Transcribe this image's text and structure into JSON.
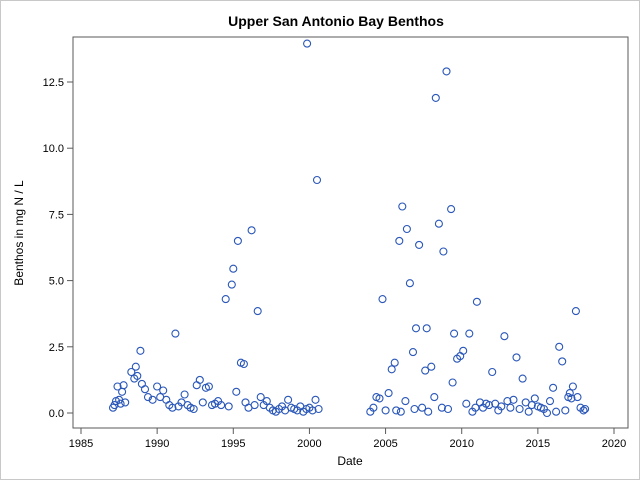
{
  "chart_data": {
    "type": "scatter",
    "title": "Upper San Antonio Bay Benthos",
    "xlabel": "Date",
    "ylabel": "Benthos in mg N / L",
    "xlim": [
      1985,
      2020
    ],
    "ylim": [
      0,
      14
    ],
    "xticks": [
      1985,
      1990,
      1995,
      2000,
      2005,
      2010,
      2015,
      2020
    ],
    "xtick_labels": [
      "1985",
      "1990",
      "1995",
      "2000",
      "2005",
      "2010",
      "2015",
      "2020"
    ],
    "yticks": [
      0,
      2.5,
      5,
      7.5,
      10,
      12.5
    ],
    "ytick_labels": [
      "0.0",
      "2.5",
      "5.0",
      "7.5",
      "10.0",
      "12.5"
    ],
    "grid": false,
    "marker": "open-circle",
    "color": "#2a57b8",
    "points": [
      [
        1987.1,
        0.2
      ],
      [
        1987.2,
        0.3
      ],
      [
        1987.3,
        0.45
      ],
      [
        1987.4,
        1.0
      ],
      [
        1987.5,
        0.5
      ],
      [
        1987.6,
        0.35
      ],
      [
        1987.7,
        0.8
      ],
      [
        1987.8,
        1.05
      ],
      [
        1987.9,
        0.4
      ],
      [
        1988.3,
        1.55
      ],
      [
        1988.5,
        1.3
      ],
      [
        1988.6,
        1.75
      ],
      [
        1988.7,
        1.4
      ],
      [
        1988.9,
        2.35
      ],
      [
        1989.0,
        1.1
      ],
      [
        1989.2,
        0.9
      ],
      [
        1989.4,
        0.6
      ],
      [
        1989.7,
        0.5
      ],
      [
        1990.0,
        1.0
      ],
      [
        1990.2,
        0.6
      ],
      [
        1990.4,
        0.85
      ],
      [
        1990.6,
        0.5
      ],
      [
        1990.8,
        0.3
      ],
      [
        1991.0,
        0.2
      ],
      [
        1991.2,
        3.0
      ],
      [
        1991.4,
        0.25
      ],
      [
        1991.6,
        0.4
      ],
      [
        1991.8,
        0.7
      ],
      [
        1992.0,
        0.3
      ],
      [
        1992.2,
        0.2
      ],
      [
        1992.4,
        0.15
      ],
      [
        1992.6,
        1.05
      ],
      [
        1992.8,
        1.25
      ],
      [
        1993.0,
        0.4
      ],
      [
        1993.2,
        0.95
      ],
      [
        1993.4,
        1.0
      ],
      [
        1993.6,
        0.3
      ],
      [
        1993.8,
        0.35
      ],
      [
        1994.0,
        0.45
      ],
      [
        1994.2,
        0.3
      ],
      [
        1994.5,
        4.3
      ],
      [
        1994.7,
        0.25
      ],
      [
        1994.9,
        4.85
      ],
      [
        1995.0,
        5.45
      ],
      [
        1995.2,
        0.8
      ],
      [
        1995.3,
        6.5
      ],
      [
        1995.5,
        1.9
      ],
      [
        1995.7,
        1.85
      ],
      [
        1995.8,
        0.4
      ],
      [
        1996.0,
        0.2
      ],
      [
        1996.2,
        6.9
      ],
      [
        1996.4,
        0.3
      ],
      [
        1996.6,
        3.85
      ],
      [
        1996.8,
        0.6
      ],
      [
        1997.0,
        0.3
      ],
      [
        1997.2,
        0.45
      ],
      [
        1997.4,
        0.2
      ],
      [
        1997.6,
        0.1
      ],
      [
        1997.8,
        0.05
      ],
      [
        1998.0,
        0.15
      ],
      [
        1998.2,
        0.25
      ],
      [
        1998.4,
        0.1
      ],
      [
        1998.6,
        0.5
      ],
      [
        1998.8,
        0.2
      ],
      [
        1999.0,
        0.15
      ],
      [
        1999.2,
        0.1
      ],
      [
        1999.4,
        0.25
      ],
      [
        1999.6,
        0.05
      ],
      [
        1999.8,
        0.15
      ],
      [
        1999.85,
        13.95
      ],
      [
        2000.0,
        0.2
      ],
      [
        2000.2,
        0.1
      ],
      [
        2000.4,
        0.5
      ],
      [
        2000.5,
        8.8
      ],
      [
        2000.6,
        0.15
      ],
      [
        2004.0,
        0.05
      ],
      [
        2004.2,
        0.2
      ],
      [
        2004.4,
        0.6
      ],
      [
        2004.6,
        0.55
      ],
      [
        2004.8,
        4.3
      ],
      [
        2005.0,
        0.1
      ],
      [
        2005.2,
        0.75
      ],
      [
        2005.4,
        1.65
      ],
      [
        2005.6,
        1.9
      ],
      [
        2005.7,
        0.1
      ],
      [
        2005.9,
        6.5
      ],
      [
        2006.0,
        0.05
      ],
      [
        2006.1,
        7.8
      ],
      [
        2006.3,
        0.45
      ],
      [
        2006.4,
        6.95
      ],
      [
        2006.6,
        4.9
      ],
      [
        2006.8,
        2.3
      ],
      [
        2006.9,
        0.15
      ],
      [
        2007.0,
        3.2
      ],
      [
        2007.2,
        6.35
      ],
      [
        2007.4,
        0.2
      ],
      [
        2007.6,
        1.6
      ],
      [
        2007.7,
        3.2
      ],
      [
        2007.8,
        0.05
      ],
      [
        2008.0,
        1.75
      ],
      [
        2008.2,
        0.6
      ],
      [
        2008.3,
        11.9
      ],
      [
        2008.5,
        7.15
      ],
      [
        2008.7,
        0.2
      ],
      [
        2008.8,
        6.1
      ],
      [
        2009.0,
        12.9
      ],
      [
        2009.1,
        0.15
      ],
      [
        2009.3,
        7.7
      ],
      [
        2009.4,
        1.15
      ],
      [
        2009.5,
        3.0
      ],
      [
        2009.7,
        2.05
      ],
      [
        2009.9,
        2.15
      ],
      [
        2010.1,
        2.35
      ],
      [
        2010.3,
        0.35
      ],
      [
        2010.5,
        3.0
      ],
      [
        2010.7,
        0.05
      ],
      [
        2010.9,
        0.2
      ],
      [
        2011.0,
        4.2
      ],
      [
        2011.2,
        0.4
      ],
      [
        2011.4,
        0.2
      ],
      [
        2011.6,
        0.35
      ],
      [
        2011.8,
        0.3
      ],
      [
        2012.0,
        1.55
      ],
      [
        2012.2,
        0.35
      ],
      [
        2012.4,
        0.1
      ],
      [
        2012.6,
        0.25
      ],
      [
        2012.8,
        2.9
      ],
      [
        2013.0,
        0.45
      ],
      [
        2013.2,
        0.2
      ],
      [
        2013.4,
        0.5
      ],
      [
        2013.6,
        2.1
      ],
      [
        2013.8,
        0.15
      ],
      [
        2014.0,
        1.3
      ],
      [
        2014.2,
        0.4
      ],
      [
        2014.4,
        0.05
      ],
      [
        2014.6,
        0.3
      ],
      [
        2014.8,
        0.55
      ],
      [
        2015.0,
        0.25
      ],
      [
        2015.2,
        0.2
      ],
      [
        2015.4,
        0.15
      ],
      [
        2015.6,
        0.0
      ],
      [
        2015.8,
        0.45
      ],
      [
        2016.0,
        0.95
      ],
      [
        2016.2,
        0.05
      ],
      [
        2016.4,
        2.5
      ],
      [
        2016.6,
        1.95
      ],
      [
        2016.8,
        0.1
      ],
      [
        2017.0,
        0.6
      ],
      [
        2017.1,
        0.75
      ],
      [
        2017.2,
        0.55
      ],
      [
        2017.3,
        1.0
      ],
      [
        2017.5,
        3.85
      ],
      [
        2017.6,
        0.6
      ],
      [
        2017.8,
        0.2
      ],
      [
        2018.0,
        0.1
      ],
      [
        2018.1,
        0.15
      ]
    ]
  }
}
